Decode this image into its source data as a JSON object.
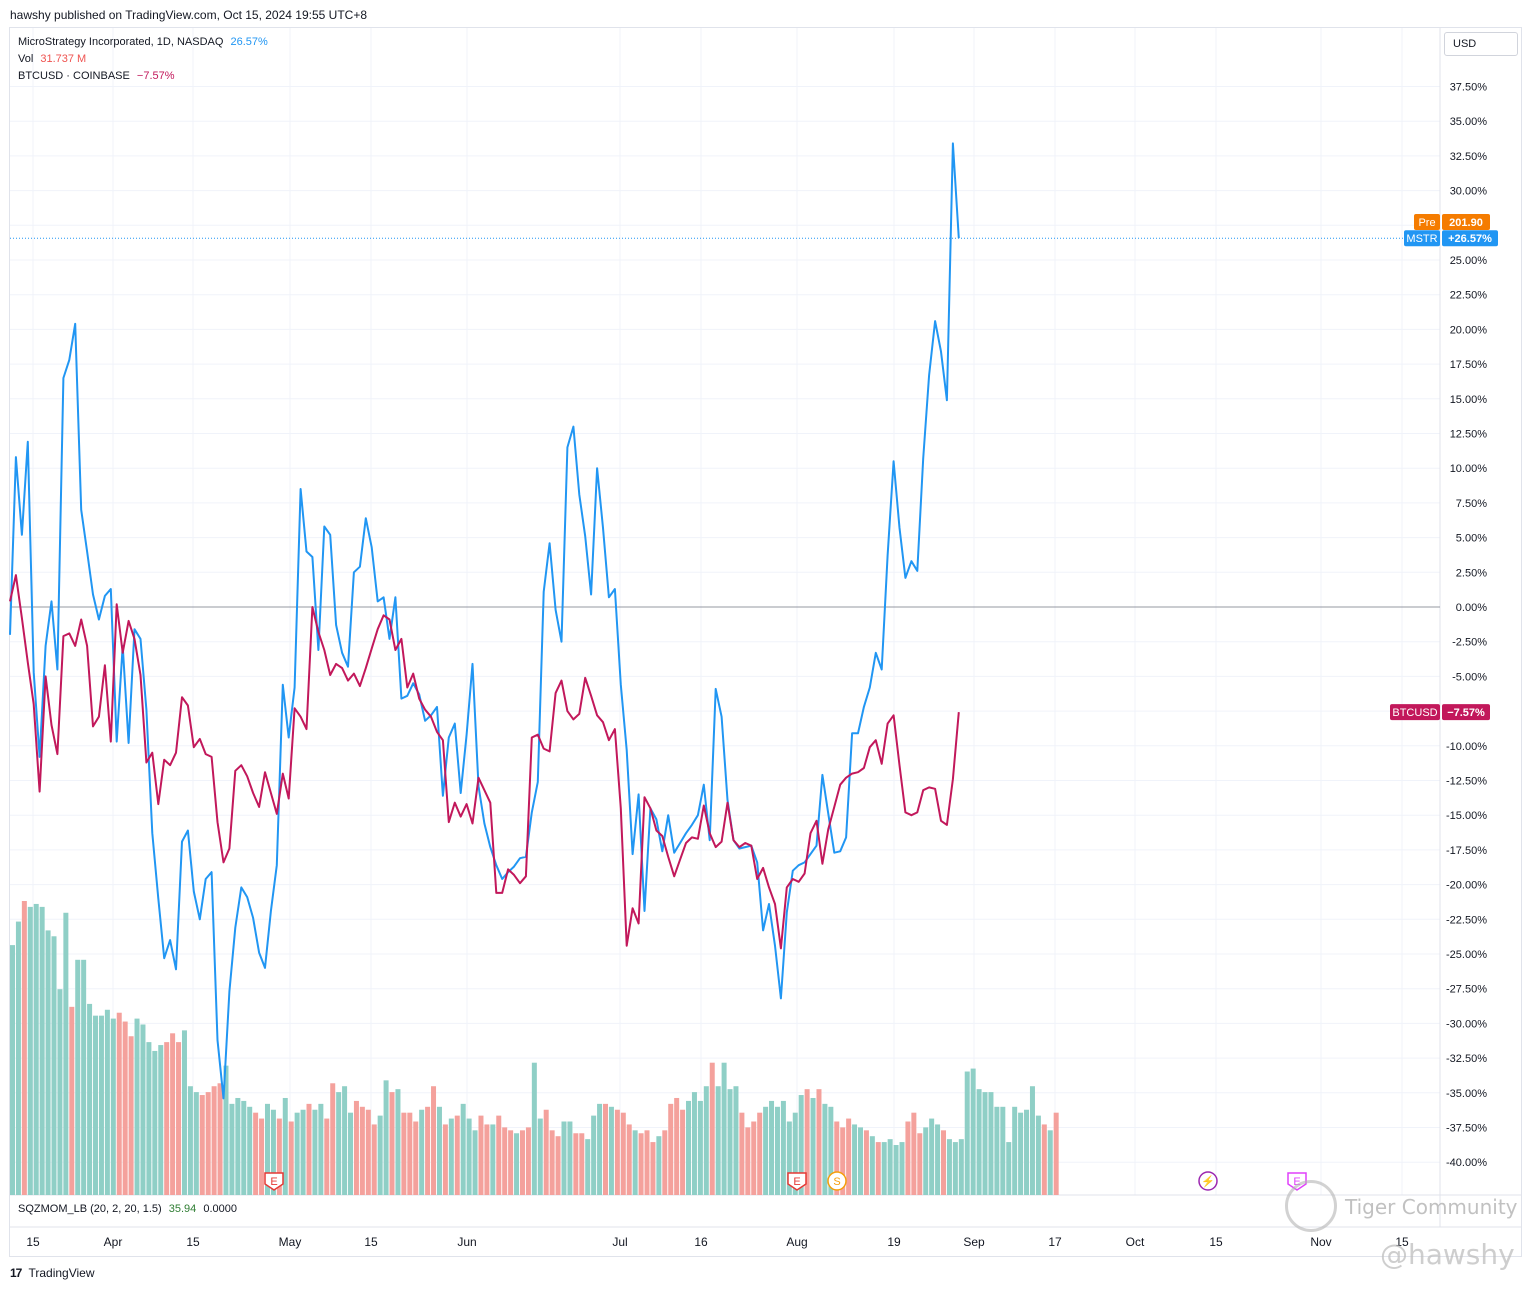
{
  "header": {
    "publish_line": "hawshy published on TradingView.com, Oct 15, 2024 19:55 UTC+8"
  },
  "legend": {
    "main_name": "MicroStrategy Incorporated, 1D, NASDAQ",
    "main_value": "26.57%",
    "vol_label": "Vol",
    "vol_value": "31.737 M",
    "compare_name": "BTCUSD · COINBASE",
    "compare_value": "−7.57%"
  },
  "currency_button": "USD",
  "indicator": {
    "name": "SQZMOM_LB (20, 2, 20, 1.5)",
    "value1": "35.94",
    "value2": "0.0000"
  },
  "footer": {
    "logo_glyph": "17",
    "logo_text": "TradingView"
  },
  "watermarks": {
    "community": "Tiger Community",
    "handle": "@hawshy"
  },
  "colors": {
    "mstr": "#2196f3",
    "btc": "#c2185b",
    "pre": "#f57c00",
    "vol_up": "#8fcfc6",
    "vol_down": "#f4a19c"
  },
  "chart_data": {
    "type": "line",
    "xlabel": "",
    "ylabel": "",
    "ylim": [
      -42.5,
      41.5
    ],
    "y_tick_labels": [
      "37.50%",
      "35.00%",
      "32.50%",
      "30.00%",
      "27.50%",
      "25.00%",
      "22.50%",
      "20.00%",
      "17.50%",
      "15.00%",
      "12.50%",
      "10.00%",
      "7.50%",
      "5.00%",
      "2.50%",
      "0.00%",
      "-2.50%",
      "-5.00%",
      "-7.50%",
      "-10.00%",
      "-12.50%",
      "-15.00%",
      "-17.50%",
      "-20.00%",
      "-22.50%",
      "-25.00%",
      "-27.50%",
      "-30.00%",
      "-32.50%",
      "-35.00%",
      "-37.50%",
      "-40.00%"
    ],
    "x_tick_labels": [
      "15",
      "Apr",
      "15",
      "May",
      "15",
      "Jun",
      "Jul",
      "16",
      "Aug",
      "19",
      "Sep",
      "17",
      "Oct",
      "15",
      "Nov",
      "15"
    ],
    "grid": true,
    "zero_line": 0,
    "series": [
      {
        "name": "MSTR",
        "values": [
          -2,
          10.8,
          5.2,
          11.9,
          -4.7,
          -10.8,
          -2.8,
          0.4,
          -4.5,
          16.5,
          17.8,
          20.4,
          7,
          4,
          0.9,
          -0.9,
          0.8,
          1.3,
          -9.7,
          -2.8,
          -9.8,
          -1.6,
          -2.3,
          -7.4,
          -16.3,
          -21,
          -25.3,
          -24,
          -26.1,
          -16.9,
          -16.1,
          -20.5,
          -22.5,
          -19.6,
          -19.1,
          -31.2,
          -35.4,
          -27.7,
          -23.1,
          -20.2,
          -20.9,
          -22.4,
          -24.9,
          -26,
          -21.9,
          -18.6,
          -5.6,
          -9.4,
          -5.8,
          8.5,
          4,
          3.6,
          -3.1,
          5.8,
          5.2,
          -1.3,
          -3.3,
          -4.3,
          2.5,
          2.9,
          6.4,
          4.3,
          0.4,
          0.7,
          -2.3,
          0.7,
          -6.6,
          -6.4,
          -5.5,
          -6.3,
          -8.2,
          -7.8,
          -7.2,
          -13.6,
          -9.4,
          -8.4,
          -13.4,
          -9.2,
          -4.1,
          -12.9,
          -15.6,
          -17.3,
          -18.6,
          -19.6,
          -19.1,
          -18.7,
          -18.1,
          -18,
          -14.8,
          -12.6,
          1.1,
          4.6,
          -0.2,
          -2.5,
          11.5,
          13,
          8.1,
          5.1,
          0.9,
          10,
          5.7,
          0.7,
          1.3,
          -5.6,
          -10.3,
          -17.8,
          -13.5,
          -21.9,
          -14.5,
          -15.3,
          -17.6,
          -15,
          -17.7,
          -17,
          -16.3,
          -15.7,
          -15,
          -12.8,
          -16.8,
          -5.9,
          -7.9,
          -13.9,
          -16.8,
          -17.4,
          -17.3,
          -17.2,
          -18.4,
          -23.3,
          -21.4,
          -24.4,
          -28.2,
          -22,
          -19,
          -18.6,
          -18.4,
          -17.8,
          -17.2,
          -12.1,
          -14.9,
          -17.7,
          -17.6,
          -16.6,
          -9.1,
          -9.1,
          -7.2,
          -5.8,
          -3.3,
          -4.5,
          3.7,
          10.5,
          5.7,
          2.1,
          3.3,
          2.6,
          10.7,
          16.7,
          20.6,
          18.4,
          14.9,
          33.4,
          26.57
        ]
      },
      {
        "name": "BTCUSD",
        "values": [
          0.4,
          2.3,
          -0.8,
          -4,
          -7,
          -13.3,
          -5,
          -8.5,
          -10.6,
          -2.1,
          -1.9,
          -2.8,
          -0.9,
          -2.8,
          -8.6,
          -7.9,
          -4.2,
          -9.7,
          0.2,
          -3.3,
          -1,
          -2.3,
          -4.9,
          -11.2,
          -10.5,
          -14.2,
          -11,
          -11.4,
          -10.5,
          -6.5,
          -7.1,
          -10.1,
          -9.5,
          -10.6,
          -10.8,
          -15.5,
          -18.4,
          -17.4,
          -11.8,
          -11.4,
          -12.2,
          -13.4,
          -14.4,
          -11.9,
          -13.4,
          -14.9,
          -12,
          -13.8,
          -7.3,
          -7.9,
          -8.8,
          0,
          -1.8,
          -3.1,
          -4.9,
          -4.1,
          -4.4,
          -5.3,
          -4.8,
          -5.7,
          -4.4,
          -3,
          -1.6,
          -0.6,
          -0.9,
          -3.1,
          -2.3,
          -5.8,
          -4.8,
          -6.6,
          -7.4,
          -7.9,
          -9,
          -9.6,
          -15.5,
          -14.1,
          -15.1,
          -14.2,
          -15.6,
          -12.3,
          -13.2,
          -14.1,
          -20.6,
          -20.6,
          -18.9,
          -19.3,
          -19.9,
          -19.4,
          -9.4,
          -9.2,
          -10.2,
          -10.4,
          -6.2,
          -5.3,
          -7.5,
          -8.1,
          -7.7,
          -5.1,
          -6.4,
          -7.8,
          -8.3,
          -9.6,
          -8.8,
          -14.5,
          -24.4,
          -21.7,
          -22.8,
          -13.7,
          -14.5,
          -16.1,
          -16.5,
          -18,
          -19.4,
          -18.2,
          -17,
          -16.6,
          -16.7,
          -14.3,
          -16.3,
          -17.3,
          -16.9,
          -14.1,
          -16.8,
          -17.3,
          -17,
          -17.2,
          -19.6,
          -18.8,
          -20.2,
          -21.4,
          -24.6,
          -20.2,
          -19.6,
          -19.8,
          -19.2,
          -16.3,
          -15.4,
          -18.5,
          -16,
          -14.4,
          -12.8,
          -12.3,
          -12,
          -11.9,
          -11.6,
          -10.1,
          -9.6,
          -11.3,
          -8.4,
          -7.8,
          -11.4,
          -14.8,
          -15,
          -14.8,
          -13.2,
          -13,
          -13.1,
          -15.4,
          -15.7,
          -12.4,
          -7.57
        ]
      }
    ],
    "price_labels": [
      {
        "tag": "Pre",
        "value": "201.90"
      },
      {
        "tag": "MSTR",
        "value": "+26.57%"
      },
      {
        "tag": "BTCUSD",
        "value": "−7.57%"
      }
    ],
    "volume": [
      [
        85,
        1
      ],
      [
        93,
        1
      ],
      [
        100,
        0
      ],
      [
        98,
        1
      ],
      [
        99,
        1
      ],
      [
        98,
        1
      ],
      [
        90,
        1
      ],
      [
        88,
        1
      ],
      [
        70,
        1
      ],
      [
        96,
        1
      ],
      [
        64,
        0
      ],
      [
        80,
        1
      ],
      [
        80,
        1
      ],
      [
        65,
        1
      ],
      [
        61,
        1
      ],
      [
        61,
        1
      ],
      [
        63,
        1
      ],
      [
        60,
        1
      ],
      [
        62,
        0
      ],
      [
        59,
        0
      ],
      [
        54,
        0
      ],
      [
        60,
        1
      ],
      [
        58,
        1
      ],
      [
        52,
        1
      ],
      [
        49,
        1
      ],
      [
        51,
        1
      ],
      [
        52,
        0
      ],
      [
        55,
        0
      ],
      [
        52,
        0
      ],
      [
        56,
        1
      ],
      [
        37,
        1
      ],
      [
        35,
        1
      ],
      [
        34,
        0
      ],
      [
        35,
        0
      ],
      [
        37,
        0
      ],
      [
        38,
        0
      ],
      [
        44,
        1
      ],
      [
        31,
        1
      ],
      [
        33,
        1
      ],
      [
        32,
        1
      ],
      [
        30,
        1
      ],
      [
        28,
        0
      ],
      [
        26,
        0
      ],
      [
        31,
        1
      ],
      [
        29,
        1
      ],
      [
        26,
        0
      ],
      [
        33,
        1
      ],
      [
        25,
        0
      ],
      [
        28,
        1
      ],
      [
        29,
        1
      ],
      [
        31,
        0
      ],
      [
        29,
        1
      ],
      [
        31,
        1
      ],
      [
        26,
        0
      ],
      [
        38,
        0
      ],
      [
        35,
        1
      ],
      [
        37,
        1
      ],
      [
        28,
        1
      ],
      [
        32,
        0
      ],
      [
        30,
        0
      ],
      [
        29,
        0
      ],
      [
        24,
        0
      ],
      [
        27,
        1
      ],
      [
        39,
        1
      ],
      [
        35,
        0
      ],
      [
        36,
        1
      ],
      [
        28,
        0
      ],
      [
        28,
        0
      ],
      [
        25,
        0
      ],
      [
        29,
        1
      ],
      [
        30,
        0
      ],
      [
        37,
        0
      ],
      [
        30,
        1
      ],
      [
        24,
        0
      ],
      [
        26,
        1
      ],
      [
        27,
        0
      ],
      [
        31,
        1
      ],
      [
        26,
        1
      ],
      [
        22,
        1
      ],
      [
        27,
        0
      ],
      [
        24,
        0
      ],
      [
        24,
        1
      ],
      [
        27,
        0
      ],
      [
        23,
        0
      ],
      [
        22,
        0
      ],
      [
        21,
        1
      ],
      [
        22,
        0
      ],
      [
        23,
        0
      ],
      [
        45,
        1
      ],
      [
        26,
        1
      ],
      [
        29,
        0
      ],
      [
        22,
        0
      ],
      [
        20,
        0
      ],
      [
        25,
        1
      ],
      [
        25,
        1
      ],
      [
        21,
        0
      ],
      [
        21,
        0
      ],
      [
        19,
        1
      ],
      [
        27,
        1
      ],
      [
        31,
        1
      ],
      [
        31,
        0
      ],
      [
        30,
        1
      ],
      [
        29,
        0
      ],
      [
        28,
        0
      ],
      [
        24,
        0
      ],
      [
        22,
        1
      ],
      [
        21,
        0
      ],
      [
        22,
        0
      ],
      [
        18,
        0
      ],
      [
        20,
        1
      ],
      [
        22,
        0
      ],
      [
        31,
        0
      ],
      [
        33,
        0
      ],
      [
        29,
        0
      ],
      [
        32,
        1
      ],
      [
        35,
        1
      ],
      [
        32,
        1
      ],
      [
        37,
        1
      ],
      [
        45,
        0
      ],
      [
        37,
        1
      ],
      [
        45,
        1
      ],
      [
        36,
        1
      ],
      [
        37,
        1
      ],
      [
        28,
        0
      ],
      [
        23,
        0
      ],
      [
        25,
        0
      ],
      [
        28,
        0
      ],
      [
        30,
        1
      ],
      [
        32,
        1
      ],
      [
        30,
        1
      ],
      [
        32,
        1
      ],
      [
        25,
        1
      ],
      [
        28,
        1
      ],
      [
        34,
        1
      ],
      [
        36,
        0
      ],
      [
        33,
        1
      ],
      [
        36,
        0
      ],
      [
        31,
        1
      ],
      [
        30,
        1
      ],
      [
        25,
        0
      ],
      [
        23,
        0
      ],
      [
        26,
        0
      ],
      [
        24,
        1
      ],
      [
        23,
        1
      ],
      [
        22,
        0
      ],
      [
        20,
        1
      ],
      [
        18,
        0
      ],
      [
        18,
        1
      ],
      [
        19,
        1
      ],
      [
        17,
        1
      ],
      [
        18,
        1
      ],
      [
        25,
        0
      ],
      [
        28,
        0
      ],
      [
        21,
        0
      ],
      [
        23,
        1
      ],
      [
        26,
        1
      ],
      [
        24,
        1
      ],
      [
        22,
        0
      ],
      [
        19,
        1
      ],
      [
        18,
        1
      ],
      [
        19,
        1
      ],
      [
        42,
        1
      ],
      [
        43,
        1
      ],
      [
        36,
        1
      ],
      [
        35,
        1
      ],
      [
        35,
        1
      ],
      [
        30,
        1
      ],
      [
        30,
        1
      ],
      [
        18,
        1
      ],
      [
        30,
        1
      ],
      [
        28,
        1
      ],
      [
        29,
        1
      ],
      [
        37,
        1
      ],
      [
        27,
        1
      ],
      [
        24,
        0
      ],
      [
        22,
        1
      ],
      [
        28,
        0
      ]
    ],
    "event_markers": [
      {
        "type": "earnings",
        "label": "E"
      },
      {
        "type": "earnings",
        "label": "E"
      },
      {
        "type": "split",
        "label": "S"
      },
      {
        "type": "upcoming",
        "label": "⚡"
      },
      {
        "type": "earnings-upcoming",
        "label": "E"
      }
    ]
  }
}
